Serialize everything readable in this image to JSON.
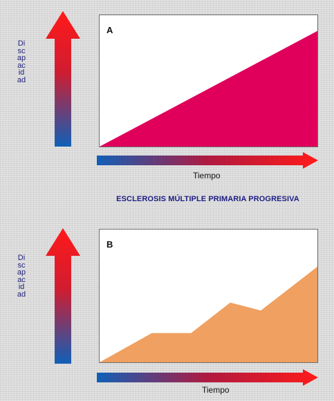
{
  "title": "ESCLEROSIS MÚLTIPLE PRIMARIA PROGRESIVA",
  "y_axis_label": "Discapacidad",
  "x_axis_label": "Tiempo",
  "colors": {
    "arrow_top": "#ff1a1a",
    "arrow_bottom": "#1060b8",
    "panel_a_fill": "#e0005c",
    "panel_b_fill": "#f0a060"
  },
  "panels": [
    {
      "label": "A",
      "shape": "linear increase",
      "x": [
        0,
        1
      ],
      "y": [
        0,
        0.88
      ]
    },
    {
      "label": "B",
      "shape": "stepwise increase",
      "x": [
        0,
        0.24,
        0.42,
        0.6,
        0.74,
        1
      ],
      "y": [
        0,
        0.22,
        0.22,
        0.45,
        0.39,
        0.72
      ]
    }
  ]
}
